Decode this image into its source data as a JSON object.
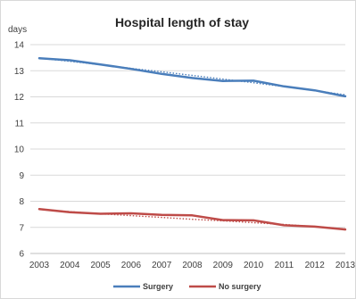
{
  "chart_data": {
    "type": "line",
    "title": "Hospital length of stay",
    "ylabel": "days",
    "xlabel": "",
    "ylim": [
      6,
      14
    ],
    "yticks": [
      6,
      7,
      8,
      9,
      10,
      11,
      12,
      13,
      14
    ],
    "categories": [
      "2003",
      "2004",
      "2005",
      "2006",
      "2007",
      "2008",
      "2009",
      "2010",
      "2011",
      "2012",
      "2013"
    ],
    "grid": true,
    "legend_position": "bottom",
    "trendlines": "dotted",
    "series": [
      {
        "name": "Surgery",
        "color": "#4a7ebb",
        "values": [
          13.48,
          13.4,
          13.24,
          13.07,
          12.88,
          12.72,
          12.61,
          12.62,
          12.4,
          12.25,
          12.02
        ],
        "trend": [
          13.48,
          13.36,
          13.23,
          13.09,
          12.96,
          12.82,
          12.68,
          12.54,
          12.39,
          12.24,
          12.08
        ]
      },
      {
        "name": "No surgery",
        "color": "#be4b48",
        "values": [
          7.7,
          7.58,
          7.52,
          7.54,
          7.48,
          7.46,
          7.28,
          7.27,
          7.08,
          7.03,
          6.92
        ],
        "trend": [
          7.69,
          7.6,
          7.52,
          7.45,
          7.38,
          7.31,
          7.25,
          7.18,
          7.11,
          7.03,
          6.94
        ]
      }
    ]
  }
}
